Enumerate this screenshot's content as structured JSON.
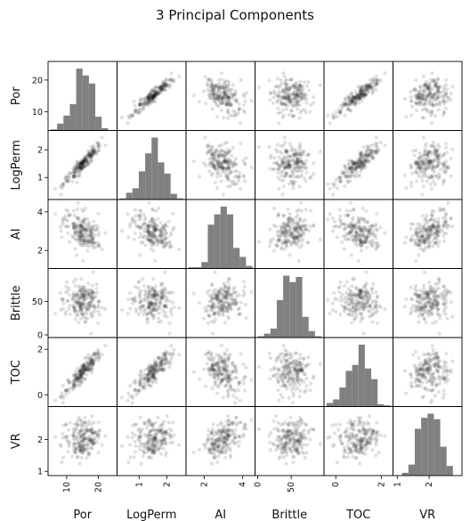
{
  "chart_data": {
    "type": "scatter_matrix",
    "title": "3 Principal Components",
    "variables": [
      "Por",
      "LogPerm",
      "AI",
      "Brittle",
      "TOC",
      "VR"
    ],
    "axis_labels": [
      "Por",
      "LogPerm",
      "AI",
      "Brittle",
      "TOC",
      "VR"
    ],
    "ranges": {
      "Por": [
        5,
        25
      ],
      "LogPerm": [
        0.3,
        2.6
      ],
      "AI": [
        1.2,
        4.5
      ],
      "Brittle": [
        0,
        95
      ],
      "TOC": [
        -0.4,
        2.4
      ],
      "VR": [
        0.95,
        2.95
      ]
    },
    "ticks": {
      "Por": [
        10,
        20
      ],
      "LogPerm": [
        1,
        2
      ],
      "AI": [
        2,
        4
      ],
      "Brittle": [
        0,
        50
      ],
      "TOC": [
        0,
        2
      ],
      "VR": [
        1,
        2
      ]
    },
    "diagonal": "histogram",
    "marker_color": "#000000",
    "marker_alpha": 0.12,
    "bar_color": "#808080",
    "n_points": 200,
    "distributions": {
      "Por": {
        "mean": 15,
        "sd": 3
      },
      "LogPerm": {
        "mean": 1.5,
        "sd": 0.38
      },
      "AI": {
        "mean": 3.0,
        "sd": 0.5
      },
      "Brittle": {
        "mean": 49,
        "sd": 14
      },
      "TOC": {
        "mean": 1.0,
        "sd": 0.5
      },
      "VR": {
        "mean": 2.0,
        "sd": 0.3
      }
    },
    "correlations": [
      [
        1.0,
        0.95,
        -0.45,
        -0.05,
        0.92,
        0.1
      ],
      [
        0.95,
        1.0,
        -0.4,
        -0.03,
        0.88,
        0.12
      ],
      [
        -0.45,
        -0.4,
        1.0,
        0.1,
        -0.4,
        0.45
      ],
      [
        -0.05,
        -0.03,
        0.1,
        1.0,
        -0.1,
        0.05
      ],
      [
        0.92,
        0.88,
        -0.4,
        -0.1,
        1.0,
        0.05
      ],
      [
        0.1,
        0.12,
        0.45,
        0.05,
        0.05,
        1.0
      ]
    ]
  }
}
